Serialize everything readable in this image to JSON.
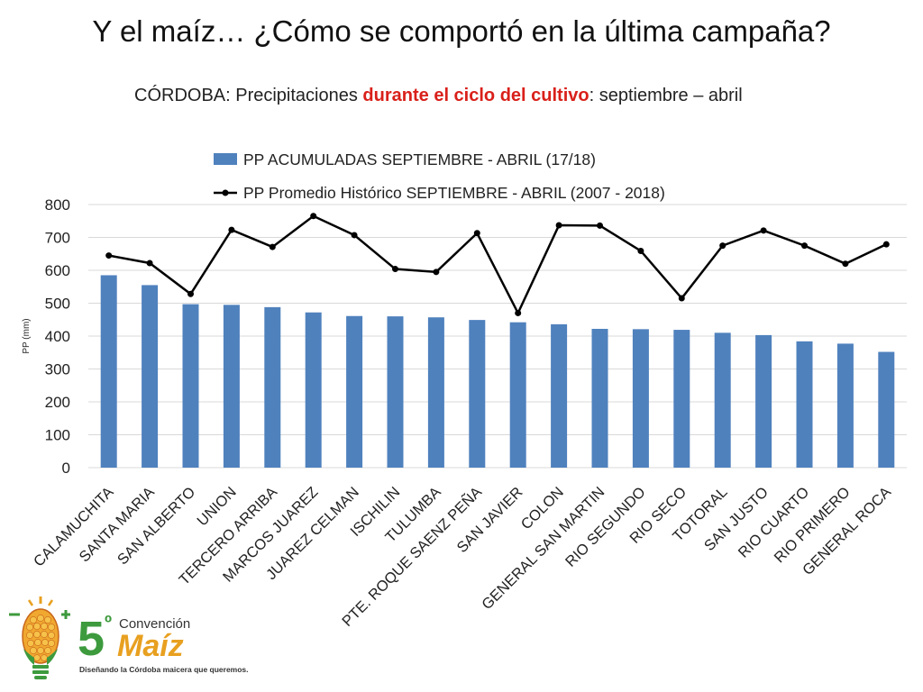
{
  "slide": {
    "title": "Y el maíz… ¿Cómo se comportó en la última campaña?",
    "subtitle_pre": "CÓRDOBA: Precipitaciones ",
    "subtitle_highlight": "durante el ciclo del cultivo",
    "subtitle_post": ": septiembre –  abril"
  },
  "colors": {
    "bar": "#4f81bd",
    "line": "#000000",
    "highlight": "#d9201a"
  },
  "logo": {
    "number": "5",
    "degree": "º",
    "convencion": "Convención",
    "maiz": "Maíz",
    "tagline": "Diseñando la Córdoba maicera que queremos."
  },
  "chart_data": {
    "type": "bar",
    "categories": [
      "CALAMUCHITA",
      "SANTA MARIA",
      "SAN ALBERTO",
      "UNION",
      "TERCERO ARRIBA",
      "MARCOS JUAREZ",
      "JUAREZ CELMAN",
      "ISCHILIN",
      "TULUMBA",
      "PTE. ROQUE SAENZ PEÑA",
      "SAN JAVIER",
      "COLON",
      "GENERAL SAN MARTIN",
      "RIO SEGUNDO",
      "RIO SECO",
      "TOTORAL",
      "SAN JUSTO",
      "RIO CUARTO",
      "RIO PRIMERO",
      "GENERAL ROCA"
    ],
    "series": [
      {
        "name": "PP ACUMULADAS SEPTIEMBRE - ABRIL (17/18)",
        "type": "bar",
        "values": [
          585,
          555,
          497,
          495,
          488,
          472,
          461,
          460,
          457,
          449,
          442,
          436,
          422,
          421,
          419,
          410,
          403,
          384,
          377,
          352
        ]
      },
      {
        "name": "PP Promedio Histórico SEPTIEMBRE - ABRIL (2007 - 2018)",
        "type": "line",
        "values": [
          645,
          622,
          528,
          723,
          671,
          765,
          707,
          604,
          595,
          713,
          470,
          737,
          736,
          659,
          515,
          675,
          721,
          675,
          620,
          679
        ]
      }
    ],
    "ylabel": "PP (mm)",
    "ylim": [
      0,
      800
    ],
    "yticks": [
      0,
      100,
      200,
      300,
      400,
      500,
      600,
      700,
      800
    ],
    "grid": true,
    "legend_position": "top"
  }
}
